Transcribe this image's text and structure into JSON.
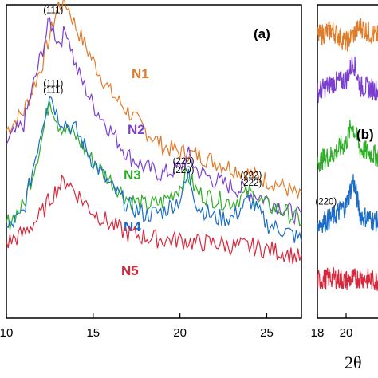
{
  "chart_data": [
    {
      "type": "line",
      "panel_label": "(a)",
      "xlim": [
        10,
        27
      ],
      "x_ticks": [
        "10",
        "15",
        "20",
        "25"
      ],
      "x_tick_values": [
        10,
        15,
        20,
        25
      ],
      "y_ticks": "none",
      "grid": false,
      "legend": "none",
      "series": [
        {
          "name": "N1",
          "color": "#e07b2a",
          "x": [
            10,
            11,
            12,
            12.5,
            13,
            13.5,
            14,
            15,
            16,
            17,
            18,
            19,
            20,
            21,
            22,
            23,
            24,
            25,
            26,
            27
          ],
          "y": [
            0.6,
            0.66,
            0.8,
            0.9,
            1.0,
            1.0,
            0.93,
            0.82,
            0.72,
            0.66,
            0.6,
            0.55,
            0.53,
            0.52,
            0.5,
            0.48,
            0.46,
            0.44,
            0.42,
            0.38
          ]
        },
        {
          "name": "N2",
          "color": "#7b3fd0",
          "x": [
            10,
            11,
            12,
            12.5,
            13,
            13.5,
            14,
            15,
            16,
            17,
            18,
            19,
            20,
            20.5,
            21,
            22,
            23,
            24,
            25,
            26,
            27
          ],
          "y": [
            0.56,
            0.62,
            0.84,
            0.95,
            0.88,
            0.92,
            0.8,
            0.68,
            0.6,
            0.52,
            0.48,
            0.46,
            0.48,
            0.52,
            0.47,
            0.44,
            0.42,
            0.4,
            0.38,
            0.35,
            0.32
          ]
        },
        {
          "name": "N3",
          "color": "#2fae27",
          "x": [
            10,
            11,
            12,
            12.5,
            13,
            14,
            15,
            16,
            17,
            18,
            19,
            20,
            20.4,
            21,
            22,
            23,
            24,
            25,
            26,
            27
          ],
          "y": [
            0.3,
            0.36,
            0.56,
            0.7,
            0.62,
            0.58,
            0.5,
            0.44,
            0.38,
            0.36,
            0.37,
            0.42,
            0.46,
            0.4,
            0.38,
            0.37,
            0.4,
            0.36,
            0.34,
            0.31
          ]
        },
        {
          "name": "N4",
          "color": "#1a6cc8",
          "x": [
            10,
            11,
            12,
            12.5,
            13,
            14,
            15,
            16,
            17,
            18,
            19,
            20,
            20.5,
            21,
            22,
            23,
            24,
            25,
            26,
            27
          ],
          "y": [
            0.28,
            0.34,
            0.6,
            0.72,
            0.64,
            0.6,
            0.5,
            0.42,
            0.36,
            0.33,
            0.34,
            0.38,
            0.46,
            0.36,
            0.32,
            0.32,
            0.38,
            0.3,
            0.28,
            0.25
          ]
        },
        {
          "name": "N5",
          "color": "#d8283c",
          "x": [
            10,
            11,
            12,
            12.5,
            13,
            13.5,
            14,
            15,
            16,
            17,
            18,
            19,
            20,
            21,
            22,
            23,
            24,
            25,
            26,
            27
          ],
          "y": [
            0.24,
            0.27,
            0.33,
            0.38,
            0.42,
            0.44,
            0.4,
            0.34,
            0.3,
            0.27,
            0.26,
            0.25,
            0.25,
            0.24,
            0.24,
            0.23,
            0.23,
            0.22,
            0.21,
            0.19
          ]
        }
      ],
      "annotations": [
        {
          "text": "(111)",
          "x": 12.7,
          "series": "N2"
        },
        {
          "text": "(111)",
          "x": 12.7,
          "series": "N3"
        },
        {
          "text": "(220)",
          "x": 20.2,
          "series": "N3"
        },
        {
          "text": "(222)",
          "x": 24.1,
          "series": "N3"
        },
        {
          "text": "(111)",
          "x": 12.7,
          "series": "N4"
        },
        {
          "text": "(220)",
          "x": 20.2,
          "series": "N4"
        },
        {
          "text": "(222)",
          "x": 24.1,
          "series": "N4"
        }
      ]
    },
    {
      "type": "line",
      "panel_label": "(b)",
      "xlim": [
        18,
        23
      ],
      "x_ticks": [
        "18",
        "20"
      ],
      "x_tick_values": [
        18,
        20
      ],
      "xlabel": "2θ",
      "grid": false,
      "legend": "none",
      "series": [
        {
          "color": "#e07b2a",
          "x": [
            18,
            19,
            20,
            21,
            22,
            23
          ],
          "y": [
            0.9,
            0.92,
            0.88,
            0.93,
            0.9,
            0.91
          ]
        },
        {
          "color": "#7b3fd0",
          "x": [
            18,
            19,
            20,
            20.5,
            21,
            22,
            23
          ],
          "y": [
            0.72,
            0.75,
            0.76,
            0.82,
            0.74,
            0.73,
            0.72
          ]
        },
        {
          "color": "#2fae27",
          "x": [
            18,
            19,
            20,
            20.4,
            21,
            22,
            23
          ],
          "y": [
            0.5,
            0.52,
            0.56,
            0.62,
            0.54,
            0.52,
            0.5
          ]
        },
        {
          "color": "#1a6cc8",
          "x": [
            18,
            19,
            20,
            20.5,
            21,
            22,
            23
          ],
          "y": [
            0.3,
            0.32,
            0.36,
            0.44,
            0.33,
            0.31,
            0.3
          ]
        },
        {
          "color": "#d8283c",
          "x": [
            18,
            19,
            20,
            21,
            22,
            23
          ],
          "y": [
            0.12,
            0.13,
            0.12,
            0.13,
            0.12,
            0.12
          ]
        }
      ],
      "annotations": [
        {
          "text": "(220)",
          "x": 18.6,
          "series_index": 3
        }
      ]
    }
  ]
}
